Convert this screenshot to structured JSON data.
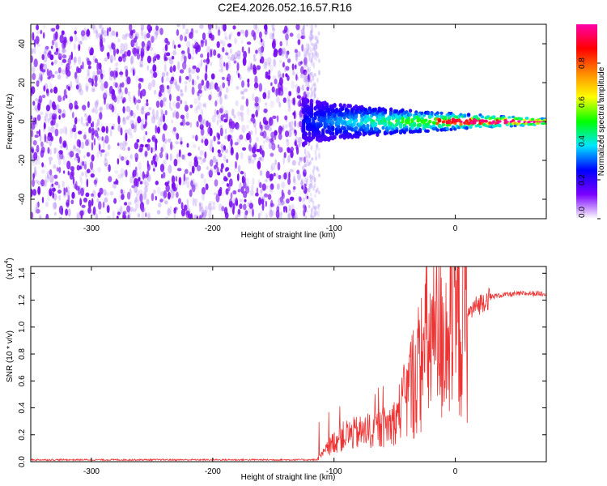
{
  "title": "C2E4.2026.052.16.57.R16",
  "chart_data": [
    {
      "type": "heatmap",
      "name": "spectrogram",
      "xlabel": "Height of straight line (km)",
      "ylabel": "Frequency (Hz)",
      "xlim": [
        -350,
        75
      ],
      "ylim": [
        -50,
        50
      ],
      "xticks": [
        -300,
        -200,
        -100,
        0
      ],
      "yticks": [
        -40,
        -20,
        0,
        20,
        40
      ],
      "colorbar": {
        "label": "Normalized spectral amplitude",
        "range": [
          0,
          1
        ],
        "ticks": [
          "0.0",
          "0.2",
          "0.4",
          "0.6",
          "0.8"
        ],
        "tick_values": [
          0,
          0.2,
          0.4,
          0.6,
          0.8
        ],
        "colors": [
          "#ffffff",
          "#7a00ff",
          "#0000ff",
          "#00e5ff",
          "#00ff00",
          "#ffff00",
          "#ff8800",
          "#ff0000",
          "#ff00aa"
        ]
      },
      "regions": [
        {
          "name": "noise",
          "x_range": [
            -350,
            -125
          ],
          "freq_range": [
            -50,
            50
          ],
          "amplitude": 0.1
        },
        {
          "name": "transition",
          "x_range": [
            -125,
            -112
          ],
          "freq_range": [
            -50,
            50
          ],
          "amplitude": 0.05
        },
        {
          "name": "signal",
          "x_range": [
            -125,
            75
          ],
          "center_freq": 0,
          "halfwidth_at_-120": 12,
          "halfwidth_at_75": 1.5,
          "peak_amplitude": 1.0
        }
      ]
    },
    {
      "type": "line",
      "name": "snr",
      "xlabel": "Height of straight line (km)",
      "ylabel": "SNR (10 * v/v)",
      "y_multiplier": "(x10",
      "y_multiplier_exp": "4",
      "y_multiplier_close": ")",
      "xlim": [
        -350,
        75
      ],
      "ylim": [
        0,
        1.45
      ],
      "xticks": [
        -300,
        -200,
        -100,
        0
      ],
      "yticks": [
        "0.0",
        "0.2",
        "0.4",
        "0.6",
        "0.8",
        "1.0",
        "1.2",
        "1.4"
      ],
      "ytick_values": [
        0,
        0.2,
        0.4,
        0.6,
        0.8,
        1.0,
        1.2,
        1.4
      ],
      "color": "#ee3333",
      "envelope": [
        [
          -350,
          0.01
        ],
        [
          -115,
          0.01
        ],
        [
          -110,
          0.05
        ],
        [
          -100,
          0.15
        ],
        [
          -90,
          0.2
        ],
        [
          -75,
          0.22
        ],
        [
          -60,
          0.25
        ],
        [
          -50,
          0.3
        ],
        [
          -40,
          0.5
        ],
        [
          -32,
          0.65
        ],
        [
          -25,
          0.85
        ],
        [
          -15,
          0.9
        ],
        [
          -10,
          0.95
        ],
        [
          0,
          1.0
        ],
        [
          5,
          1.05
        ],
        [
          15,
          1.15
        ],
        [
          25,
          1.22
        ],
        [
          40,
          1.24
        ],
        [
          60,
          1.25
        ],
        [
          75,
          1.25
        ]
      ],
      "peak": [
        7,
        1.45
      ]
    }
  ]
}
